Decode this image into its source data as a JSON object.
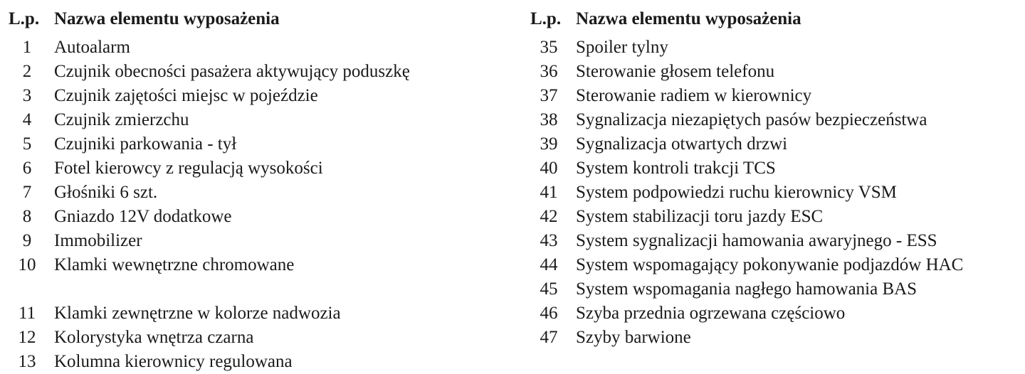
{
  "header": {
    "lp": "L.p.",
    "name": "Nazwa elementu wyposażenia"
  },
  "left": [
    {
      "n": "1",
      "name": "Autoalarm"
    },
    {
      "n": "2",
      "name": "Czujnik obecności pasażera aktywujący poduszkę"
    },
    {
      "n": "3",
      "name": "Czujnik zajętości miejsc w pojeździe"
    },
    {
      "n": "4",
      "name": "Czujnik zmierzchu"
    },
    {
      "n": "5",
      "name": "Czujniki parkowania - tył"
    },
    {
      "n": "6",
      "name": "Fotel kierowcy z regulacją wysokości"
    },
    {
      "n": "7",
      "name": "Głośniki 6 szt."
    },
    {
      "n": "8",
      "name": "Gniazdo 12V dodatkowe"
    },
    {
      "n": "9",
      "name": "Immobilizer"
    },
    {
      "n": "10",
      "name": "Klamki wewnętrzne chromowane"
    },
    {
      "n": "11",
      "name": "Klamki zewnętrzne w kolorze nadwozia"
    },
    {
      "n": "12",
      "name": "Kolorystyka wnętrza czarna"
    },
    {
      "n": "13",
      "name": "Kolumna kierownicy regulowana"
    }
  ],
  "right": [
    {
      "n": "35",
      "name": "Spoiler tylny"
    },
    {
      "n": "36",
      "name": "Sterowanie głosem telefonu"
    },
    {
      "n": "37",
      "name": "Sterowanie radiem w kierownicy"
    },
    {
      "n": "38",
      "name": "Sygnalizacja niezapiętych pasów bezpieczeństwa"
    },
    {
      "n": "39",
      "name": "Sygnalizacja otwartych drzwi"
    },
    {
      "n": "40",
      "name": "System kontroli trakcji TCS"
    },
    {
      "n": "41",
      "name": "System podpowiedzi ruchu kierownicy VSM"
    },
    {
      "n": "42",
      "name": "System stabilizacji toru jazdy ESC"
    },
    {
      "n": "43",
      "name": "System sygnalizacji hamowania awaryjnego - ESS"
    },
    {
      "n": "44",
      "name": "System wspomagający pokonywanie podjazdów HAC"
    },
    {
      "n": "45",
      "name": "System wspomagania nagłego hamowania BAS"
    },
    {
      "n": "46",
      "name": "Szyba przednia ogrzewana częściowo"
    },
    {
      "n": "47",
      "name": "Szyby barwione"
    }
  ]
}
